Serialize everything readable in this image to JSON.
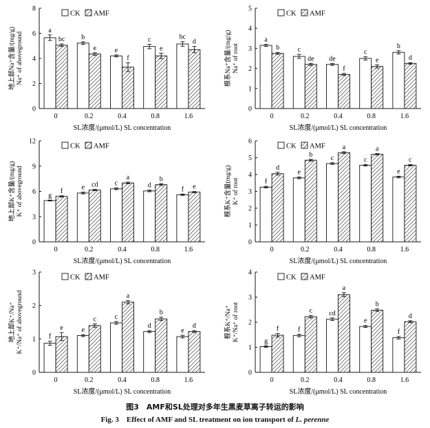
{
  "legend": {
    "ck_label": "CK",
    "amf_label": "AMF"
  },
  "caption": {
    "cn": "图3　AMF和SL处理对多年生黑麦草离子转运的影响",
    "en_prefix": "Fig. 3　Effect of AMF and SL treatment on ion transport of ",
    "en_species": "L. perenne"
  },
  "chart_data": [
    {
      "type": "bar",
      "panel": "shoot-na",
      "categories": [
        "0",
        "0.2",
        "0.4",
        "0.8",
        "1.6"
      ],
      "xlabel": "SL浓度/(μmol/L) SL concentration",
      "ylabel_cn": "地上部Na⁺含量/(mg/g)",
      "ylabel_en": "Na⁺ of aboveground",
      "ylim": [
        0,
        8
      ],
      "yticks": [
        0,
        2,
        4,
        6,
        8
      ],
      "series": [
        {
          "name": "CK",
          "values": [
            5.65,
            5.22,
            4.2,
            4.95,
            5.15
          ],
          "errors": [
            0.22,
            0.1,
            0.08,
            0.18,
            0.18
          ],
          "letters": [
            "a",
            "b",
            "e",
            "c",
            "bc"
          ]
        },
        {
          "name": "AMF",
          "values": [
            5.05,
            4.35,
            3.3,
            4.2,
            4.7
          ],
          "errors": [
            0.1,
            0.1,
            0.35,
            0.22,
            0.25
          ],
          "letters": [
            "bc",
            "e",
            "f",
            "e",
            "d"
          ]
        }
      ]
    },
    {
      "type": "bar",
      "panel": "root-na",
      "categories": [
        "0",
        "0.2",
        "0.4",
        "0.8",
        "1.6"
      ],
      "xlabel": "SL浓度/(μmol/L) SL concentration",
      "ylabel_cn": "根系Na⁺含量/(mg/g)",
      "ylabel_en": "Na⁺ of root",
      "ylim": [
        0,
        5
      ],
      "yticks": [
        0,
        1,
        2,
        3,
        4,
        5
      ],
      "series": [
        {
          "name": "CK",
          "values": [
            3.15,
            2.6,
            2.2,
            2.5,
            2.8
          ],
          "errors": [
            0.05,
            0.1,
            0.05,
            0.08,
            0.08
          ],
          "letters": [
            "a",
            "c",
            "de",
            "c",
            "b"
          ]
        },
        {
          "name": "AMF",
          "values": [
            2.75,
            2.2,
            1.7,
            2.1,
            2.25
          ],
          "errors": [
            0.05,
            0.05,
            0.05,
            0.08,
            0.04
          ],
          "letters": [
            "b",
            "de",
            "f",
            "e",
            "d"
          ]
        }
      ]
    },
    {
      "type": "bar",
      "panel": "shoot-k",
      "categories": [
        "0",
        "0.2",
        "0.4",
        "0.8",
        "1.6"
      ],
      "xlabel": "SL浓度/(μmol/L)  SL concentration",
      "ylabel_cn": "地上部K⁺含量/(mg/g)",
      "ylabel_en": "K⁺ of aboveground",
      "ylim": [
        0,
        12
      ],
      "yticks": [
        0,
        3,
        6,
        9,
        12
      ],
      "series": [
        {
          "name": "CK",
          "values": [
            4.9,
            5.8,
            6.3,
            6.05,
            5.6
          ],
          "errors": [
            0.05,
            0.1,
            0.1,
            0.1,
            0.08
          ],
          "letters": [
            "g",
            "e",
            "c",
            "d",
            "f"
          ]
        },
        {
          "name": "AMF",
          "values": [
            5.4,
            6.15,
            7.0,
            6.8,
            5.9
          ],
          "errors": [
            0.08,
            0.08,
            0.1,
            0.1,
            0.08
          ],
          "letters": [
            "f",
            "cd",
            "a",
            "b",
            "e"
          ]
        }
      ]
    },
    {
      "type": "bar",
      "panel": "root-k",
      "categories": [
        "0",
        "0.2",
        "0.4",
        "0.8",
        "1.6"
      ],
      "xlabel": "SL浓度/(μmol/L)  SL concentration",
      "ylabel_cn": "根系K⁺含量(mg/g)",
      "ylabel_en": "K⁺ of root",
      "ylim": [
        0,
        6
      ],
      "yticks": [
        0,
        1,
        2,
        3,
        4,
        5,
        6
      ],
      "series": [
        {
          "name": "CK",
          "values": [
            3.25,
            3.8,
            4.65,
            4.55,
            3.85
          ],
          "errors": [
            0.05,
            0.05,
            0.05,
            0.05,
            0.05
          ],
          "letters": [
            "f",
            "e",
            "c",
            "c",
            "e"
          ]
        },
        {
          "name": "AMF",
          "values": [
            4.05,
            4.85,
            5.3,
            5.2,
            4.55
          ],
          "errors": [
            0.08,
            0.05,
            0.05,
            0.05,
            0.04
          ],
          "letters": [
            "d",
            "b",
            "a",
            "a",
            "c"
          ]
        }
      ]
    },
    {
      "type": "bar",
      "panel": "shoot-kna",
      "categories": [
        "0",
        "0.2",
        "0.4",
        "0.8",
        "1.6"
      ],
      "xlabel": "SL浓度/(μmol/L)  SL concentration",
      "ylabel_cn": "地上部K⁺/Na⁺",
      "ylabel_en": "K⁺/Na⁺ of aboveground",
      "ylim": [
        0,
        3
      ],
      "yticks": [
        0,
        1,
        2,
        3
      ],
      "series": [
        {
          "name": "CK",
          "values": [
            0.87,
            1.1,
            1.48,
            1.22,
            1.07
          ],
          "errors": [
            0.06,
            0.03,
            0.04,
            0.03,
            0.04
          ],
          "letters": [
            "f",
            "e",
            "c",
            "d",
            "e"
          ]
        },
        {
          "name": "AMF",
          "values": [
            1.07,
            1.4,
            2.1,
            1.6,
            1.22
          ],
          "errors": [
            0.12,
            0.05,
            0.05,
            0.05,
            0.03
          ],
          "letters": [
            "e",
            "c",
            "a",
            "b",
            "d"
          ]
        }
      ]
    },
    {
      "type": "bar",
      "panel": "root-kna",
      "categories": [
        "0",
        "0.2",
        "0.4",
        "0.8",
        "1.6"
      ],
      "xlabel": "SL浓度/(μmol/L)  SL concentration",
      "ylabel_cn": "根系K⁺/Na⁺",
      "ylabel_en": "K⁺/Na⁺ of root",
      "ylim": [
        0,
        4
      ],
      "yticks": [
        0,
        1,
        2,
        3,
        4
      ],
      "series": [
        {
          "name": "CK",
          "values": [
            1.03,
            1.47,
            2.12,
            1.83,
            1.38
          ],
          "errors": [
            0.03,
            0.05,
            0.05,
            0.04,
            0.05
          ],
          "letters": [
            "g",
            "f",
            "cd",
            "e",
            "f"
          ]
        },
        {
          "name": "AMF",
          "values": [
            1.48,
            2.22,
            3.1,
            2.48,
            2.02
          ],
          "errors": [
            0.07,
            0.05,
            0.08,
            0.05,
            0.04
          ],
          "letters": [
            "f",
            "c",
            "a",
            "b",
            "d"
          ]
        }
      ]
    }
  ]
}
